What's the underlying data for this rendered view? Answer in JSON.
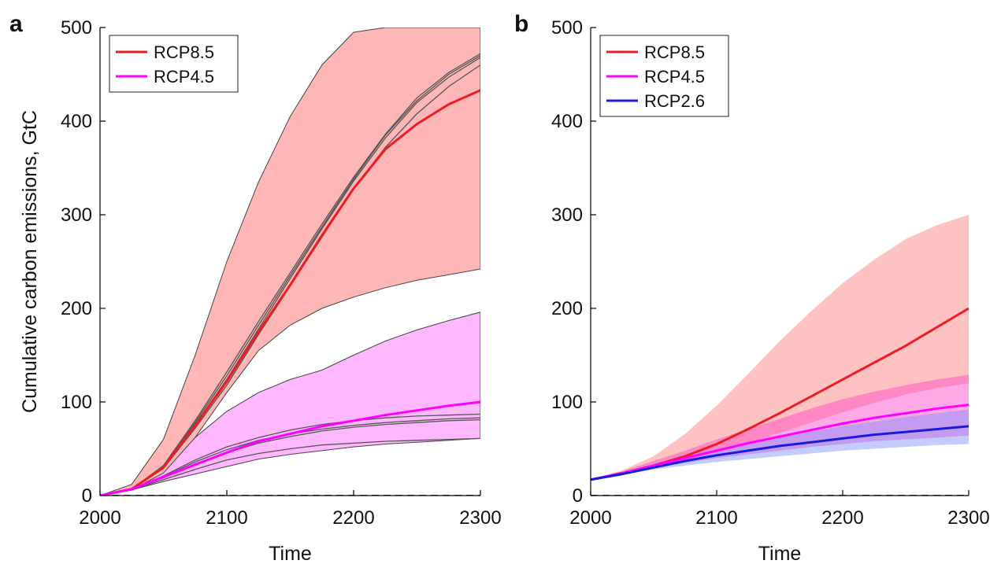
{
  "chart_data": [
    {
      "panel": "a",
      "type": "line",
      "xlabel": "Time",
      "ylabel": "Cumulative carbon emissions, GtC",
      "xlim": [
        2000,
        2300
      ],
      "ylim": [
        0,
        500
      ],
      "xticks": [
        2000,
        2100,
        2200,
        2300
      ],
      "yticks": [
        0,
        100,
        200,
        300,
        400,
        500
      ],
      "grid": false,
      "legend_position": "top-left",
      "legend": [
        {
          "name": "RCP8.5",
          "color": "#ee1c25"
        },
        {
          "name": "RCP4.5",
          "color": "#ff00ff"
        }
      ],
      "reference_line": {
        "y": 0,
        "style": "dashed",
        "color": "#444444"
      },
      "bands": [
        {
          "series": "RCP8.5",
          "fill": "#ffb6b6",
          "x": [
            2000,
            2025,
            2050,
            2075,
            2100,
            2125,
            2150,
            2175,
            2200,
            2225,
            2250,
            2275,
            2300
          ],
          "lower": [
            0,
            6,
            24,
            62,
            110,
            155,
            182,
            200,
            212,
            222,
            230,
            236,
            242
          ],
          "upper": [
            0,
            12,
            60,
            150,
            250,
            335,
            405,
            460,
            495,
            500,
            500,
            500,
            500
          ]
        },
        {
          "series": "RCP4.5",
          "fill": "#ffb8ff",
          "x": [
            2000,
            2025,
            2050,
            2075,
            2100,
            2125,
            2150,
            2175,
            2200,
            2225,
            2250,
            2275,
            2300
          ],
          "lower": [
            0,
            6,
            15,
            23,
            31,
            39,
            44,
            48,
            52,
            55,
            57,
            59,
            61
          ],
          "upper": [
            0,
            6,
            24,
            62,
            90,
            110,
            124,
            134,
            150,
            165,
            177,
            187,
            196
          ]
        }
      ],
      "series": [
        {
          "name": "RCP8.5",
          "color": "#ee1c25",
          "x": [
            2000,
            2025,
            2050,
            2075,
            2100,
            2125,
            2150,
            2175,
            2200,
            2225,
            2250,
            2275,
            2300
          ],
          "values": [
            0,
            7,
            30,
            75,
            122,
            175,
            225,
            278,
            328,
            370,
            397,
            418,
            433
          ]
        },
        {
          "name": "RCP4.5",
          "color": "#ff00ff",
          "x": [
            2000,
            2025,
            2050,
            2075,
            2100,
            2125,
            2150,
            2175,
            2200,
            2225,
            2250,
            2275,
            2300
          ],
          "values": [
            0,
            7,
            20,
            33,
            46,
            58,
            66,
            74,
            80,
            86,
            91,
            96,
            100
          ]
        }
      ],
      "model_runs": {
        "color": "#555555",
        "x": [
          2000,
          2025,
          2050,
          2075,
          2100,
          2125,
          2150,
          2175,
          2200,
          2225,
          2250,
          2275,
          2300
        ],
        "runs": [
          [
            0,
            7,
            31,
            78,
            128,
            182,
            235,
            287,
            338,
            385,
            422,
            450,
            470
          ],
          [
            0,
            7,
            30,
            76,
            124,
            178,
            232,
            285,
            336,
            382,
            420,
            447,
            468
          ],
          [
            0,
            7,
            29,
            72,
            118,
            172,
            224,
            276,
            328,
            372,
            408,
            437,
            460
          ],
          [
            0,
            7,
            32,
            80,
            132,
            186,
            238,
            290,
            340,
            386,
            425,
            452,
            472
          ],
          [
            0,
            6,
            21,
            38,
            52,
            62,
            70,
            76,
            80,
            83,
            85,
            86,
            87
          ],
          [
            0,
            6,
            20,
            36,
            49,
            59,
            66,
            71,
            75,
            78,
            80,
            82,
            83
          ],
          [
            0,
            6,
            19,
            34,
            46,
            56,
            63,
            69,
            73,
            76,
            78,
            80,
            81
          ],
          [
            0,
            6,
            17,
            28,
            38,
            45,
            50,
            54,
            56,
            58,
            59,
            60,
            61
          ]
        ]
      }
    },
    {
      "panel": "b",
      "type": "line",
      "xlabel": "Time",
      "ylabel": "",
      "xlim": [
        2000,
        2300
      ],
      "ylim": [
        0,
        500
      ],
      "xticks": [
        2000,
        2100,
        2200,
        2300
      ],
      "yticks": [
        0,
        100,
        200,
        300,
        400,
        500
      ],
      "grid": false,
      "legend_position": "top-left",
      "legend": [
        {
          "name": "RCP8.5",
          "color": "#ee1c25"
        },
        {
          "name": "RCP4.5",
          "color": "#ff00ff"
        },
        {
          "name": "RCP2.6",
          "color": "#1a1adc"
        }
      ],
      "reference_line": {
        "y": 0,
        "style": "dashed",
        "color": "#444444"
      },
      "bands": [
        {
          "series": "RCP8.5",
          "fill": "#ff9a9a",
          "opacity": 0.6,
          "x": [
            2000,
            2025,
            2050,
            2075,
            2100,
            2125,
            2150,
            2175,
            2200,
            2225,
            2250,
            2275,
            2300
          ],
          "lower": [
            17,
            22,
            30,
            38,
            46,
            56,
            67,
            78,
            89,
            99,
            108,
            115,
            120
          ],
          "upper": [
            17,
            27,
            42,
            66,
            96,
            130,
            165,
            197,
            227,
            252,
            274,
            289,
            300
          ]
        },
        {
          "series": "RCP4.5",
          "fill": "#ff40c8",
          "opacity": 0.45,
          "x": [
            2000,
            2025,
            2050,
            2075,
            2100,
            2125,
            2150,
            2175,
            2200,
            2225,
            2250,
            2275,
            2300
          ],
          "lower": [
            17,
            23,
            30,
            35,
            40,
            44,
            48,
            52,
            55,
            58,
            60,
            62,
            64
          ],
          "upper": [
            17,
            26,
            37,
            48,
            60,
            71,
            82,
            93,
            103,
            111,
            118,
            124,
            129
          ]
        },
        {
          "series": "RCP2.6",
          "fill": "#7a8cff",
          "opacity": 0.45,
          "x": [
            2000,
            2025,
            2050,
            2075,
            2100,
            2125,
            2150,
            2175,
            2200,
            2225,
            2250,
            2275,
            2300
          ],
          "lower": [
            17,
            22,
            28,
            32,
            36,
            39,
            42,
            45,
            48,
            50,
            52,
            54,
            55
          ],
          "upper": [
            17,
            25,
            34,
            42,
            50,
            57,
            63,
            69,
            74,
            79,
            84,
            88,
            92
          ]
        }
      ],
      "series": [
        {
          "name": "RCP8.5",
          "color": "#ee1c25",
          "x": [
            2000,
            2025,
            2050,
            2075,
            2100,
            2125,
            2150,
            2175,
            2200,
            2225,
            2250,
            2275,
            2300
          ],
          "values": [
            17,
            23,
            32,
            42,
            55,
            71,
            88,
            106,
            124,
            142,
            160,
            180,
            200
          ]
        },
        {
          "name": "RCP4.5",
          "color": "#ff00ff",
          "x": [
            2000,
            2025,
            2050,
            2075,
            2100,
            2125,
            2150,
            2175,
            2200,
            2225,
            2250,
            2275,
            2300
          ],
          "values": [
            17,
            24,
            32,
            40,
            48,
            56,
            63,
            70,
            77,
            83,
            88,
            93,
            97
          ]
        },
        {
          "name": "RCP2.6",
          "color": "#1a1adc",
          "x": [
            2000,
            2025,
            2050,
            2075,
            2100,
            2125,
            2150,
            2175,
            2200,
            2225,
            2250,
            2275,
            2300
          ],
          "values": [
            17,
            23,
            30,
            37,
            43,
            48,
            53,
            57,
            61,
            65,
            68,
            71,
            74
          ]
        }
      ]
    }
  ]
}
